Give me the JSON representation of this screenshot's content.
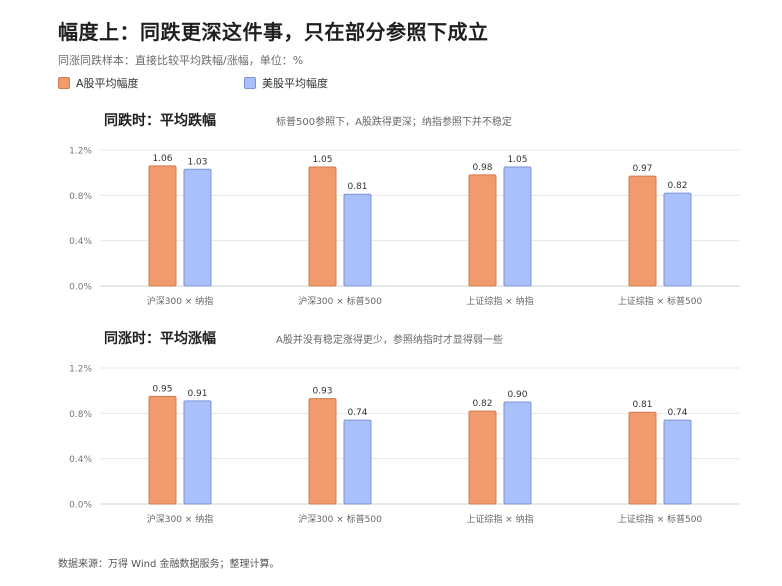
{
  "title": "幅度上：同跌更深这件事，只在部分参照下成立",
  "subtitle": "同涨同跌样本：直接比较平均跌幅/涨幅，单位：%",
  "legend": [
    {
      "label": "A股平均幅度",
      "color": "#f09b6c"
    },
    {
      "label": "美股平均幅度",
      "color": "#a9c0fb"
    }
  ],
  "colors": {
    "a_share": "#f09b6c",
    "a_share_border": "#d27a4e",
    "us": "#a9c0fb",
    "us_border": "#7c93d6",
    "grid": "#e8e8e8"
  },
  "panels": [
    {
      "title": "同跌时：平均跌幅",
      "note": "标普500参照下，A股跌得更深；纳指参照下并不稳定"
    },
    {
      "title": "同涨时：平均涨幅",
      "note": "A股并没有稳定涨得更少，参照纳指时才显得弱一些"
    }
  ],
  "chart_data": [
    {
      "type": "bar",
      "title": "同跌时：平均跌幅",
      "categories": [
        "沪深300 × 纳指",
        "沪深300 × 标普500",
        "上证综指 × 纳指",
        "上证综指 × 标普500"
      ],
      "series": [
        {
          "name": "A股平均幅度",
          "values": [
            1.06,
            1.05,
            0.98,
            0.97
          ],
          "labels": [
            "1.06",
            "1.05",
            "0.98",
            "0.97"
          ]
        },
        {
          "name": "美股平均幅度",
          "values": [
            1.03,
            0.81,
            1.05,
            0.82
          ],
          "labels": [
            "1.03",
            "0.81",
            "1.05",
            "0.82"
          ]
        }
      ],
      "ylim": [
        0,
        1.2
      ],
      "yticks": [
        0,
        0.4,
        0.8,
        1.2
      ],
      "ytick_labels": [
        "0.0%",
        "0.4%",
        "0.8%",
        "1.2%"
      ],
      "grid": true
    },
    {
      "type": "bar",
      "title": "同涨时：平均涨幅",
      "categories": [
        "沪深300 × 纳指",
        "沪深300 × 标普500",
        "上证综指 × 纳指",
        "上证综指 × 标普500"
      ],
      "series": [
        {
          "name": "A股平均幅度",
          "values": [
            0.95,
            0.93,
            0.82,
            0.81
          ],
          "labels": [
            "0.95",
            "0.93",
            "0.82",
            "0.81"
          ]
        },
        {
          "name": "美股平均幅度",
          "values": [
            0.91,
            0.74,
            0.9,
            0.74
          ],
          "labels": [
            "0.91",
            "0.74",
            "0.90",
            "0.74"
          ]
        }
      ],
      "ylim": [
        0,
        1.2
      ],
      "yticks": [
        0,
        0.4,
        0.8,
        1.2
      ],
      "ytick_labels": [
        "0.0%",
        "0.4%",
        "0.8%",
        "1.2%"
      ],
      "grid": true
    }
  ],
  "footer": "数据来源：万得 Wind 金融数据服务；整理计算。"
}
